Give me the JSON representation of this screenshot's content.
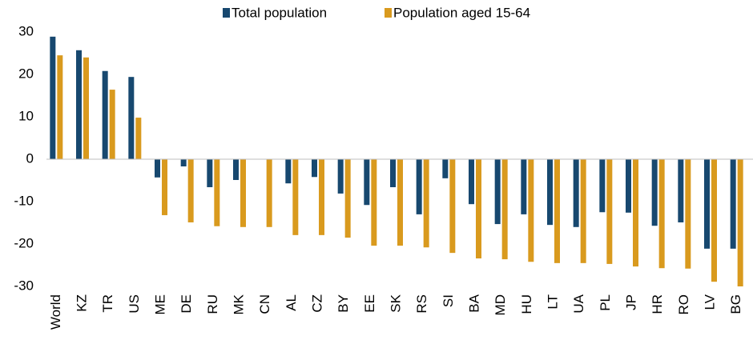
{
  "chart_data": {
    "type": "bar",
    "categories": [
      "World",
      "KZ",
      "TR",
      "US",
      "ME",
      "DE",
      "RU",
      "MK",
      "CN",
      "AL",
      "CZ",
      "BY",
      "EE",
      "SK",
      "RS",
      "SI",
      "BA",
      "MD",
      "HU",
      "LT",
      "UA",
      "PL",
      "JP",
      "HR",
      "RO",
      "LV",
      "BG"
    ],
    "series": [
      {
        "name": "Total population",
        "color": "#17486f",
        "values": [
          28.9,
          25.7,
          20.8,
          19.4,
          -4.3,
          -1.7,
          -6.6,
          -4.9,
          null,
          -5.7,
          -4.2,
          -8.1,
          -10.8,
          -6.6,
          -13,
          -4.5,
          -10.6,
          -15.3,
          -13,
          -15.5,
          -16,
          -12.5,
          -12.6,
          -15.7,
          -14.9,
          -21.1,
          -21.1
        ]
      },
      {
        "name": "Population aged 15-64",
        "color": "#d99a1e",
        "values": [
          24.5,
          24,
          16.4,
          9.8,
          -13.2,
          -14.9,
          -15.8,
          -16,
          -16,
          -17.9,
          -17.9,
          -18.5,
          -20.4,
          -20.4,
          -20.8,
          -22.1,
          -23.4,
          -23.6,
          -24.2,
          -24.5,
          -24.5,
          -24.7,
          -25.3,
          -25.7,
          -25.8,
          -28.9,
          -30
        ]
      }
    ],
    "ylim": [
      -30,
      30
    ],
    "yticks": [
      30,
      20,
      10,
      0,
      -10,
      -20,
      -30
    ],
    "grid": false
  }
}
